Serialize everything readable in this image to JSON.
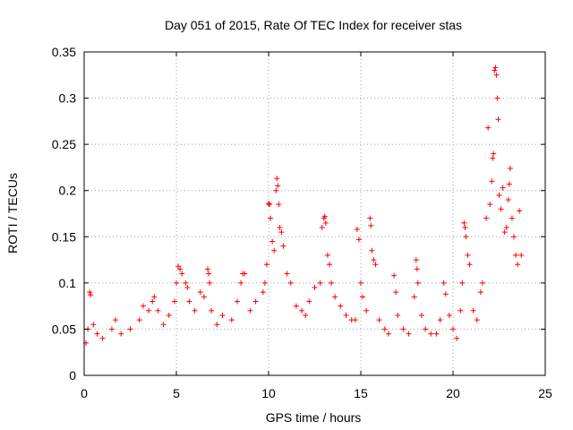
{
  "chart_data": {
    "type": "scatter",
    "title": "Day 051 of 2015, Rate Of TEC Index for receiver stas",
    "xlabel": "GPS time / hours",
    "ylabel": "ROTI / TECUs",
    "xlim": [
      0,
      25
    ],
    "ylim": [
      0,
      0.35
    ],
    "xticks": [
      "0",
      "5",
      "10",
      "15",
      "20",
      "25"
    ],
    "yticks": [
      "0",
      "0.05",
      "0.1",
      "0.15",
      "0.2",
      "0.25",
      "0.3",
      "0.35"
    ],
    "grid": true,
    "marker": "+",
    "color": "#ff0000",
    "series": [
      {
        "name": "",
        "points": [
          [
            0.1,
            0.035
          ],
          [
            0.2,
            0.05
          ],
          [
            0.3,
            0.09
          ],
          [
            0.35,
            0.087
          ],
          [
            0.5,
            0.055
          ],
          [
            0.7,
            0.045
          ],
          [
            1.0,
            0.04
          ],
          [
            1.5,
            0.05
          ],
          [
            1.7,
            0.06
          ],
          [
            2.0,
            0.045
          ],
          [
            2.5,
            0.05
          ],
          [
            3.0,
            0.06
          ],
          [
            3.2,
            0.075
          ],
          [
            3.5,
            0.07
          ],
          [
            3.7,
            0.08
          ],
          [
            3.8,
            0.085
          ],
          [
            4.0,
            0.07
          ],
          [
            4.3,
            0.055
          ],
          [
            4.6,
            0.065
          ],
          [
            4.9,
            0.08
          ],
          [
            5.0,
            0.1
          ],
          [
            5.1,
            0.118
          ],
          [
            5.2,
            0.115
          ],
          [
            5.3,
            0.11
          ],
          [
            5.5,
            0.1
          ],
          [
            5.6,
            0.095
          ],
          [
            5.7,
            0.08
          ],
          [
            6.0,
            0.07
          ],
          [
            6.3,
            0.09
          ],
          [
            6.5,
            0.085
          ],
          [
            6.7,
            0.115
          ],
          [
            6.75,
            0.11
          ],
          [
            6.8,
            0.1
          ],
          [
            6.9,
            0.07
          ],
          [
            7.2,
            0.055
          ],
          [
            7.5,
            0.065
          ],
          [
            8.0,
            0.06
          ],
          [
            8.3,
            0.08
          ],
          [
            8.5,
            0.1
          ],
          [
            8.6,
            0.11
          ],
          [
            8.7,
            0.11
          ],
          [
            9.0,
            0.07
          ],
          [
            9.3,
            0.08
          ],
          [
            9.7,
            0.09
          ],
          [
            9.8,
            0.1
          ],
          [
            9.9,
            0.12
          ],
          [
            10.0,
            0.186
          ],
          [
            10.05,
            0.185
          ],
          [
            10.1,
            0.17
          ],
          [
            10.2,
            0.145
          ],
          [
            10.3,
            0.135
          ],
          [
            10.4,
            0.2
          ],
          [
            10.45,
            0.213
          ],
          [
            10.5,
            0.205
          ],
          [
            10.55,
            0.185
          ],
          [
            10.6,
            0.16
          ],
          [
            10.7,
            0.155
          ],
          [
            10.8,
            0.14
          ],
          [
            11.0,
            0.11
          ],
          [
            11.2,
            0.1
          ],
          [
            11.5,
            0.075
          ],
          [
            11.8,
            0.07
          ],
          [
            12.0,
            0.065
          ],
          [
            12.2,
            0.08
          ],
          [
            12.5,
            0.095
          ],
          [
            12.8,
            0.1
          ],
          [
            12.9,
            0.16
          ],
          [
            13.0,
            0.17
          ],
          [
            13.05,
            0.172
          ],
          [
            13.1,
            0.165
          ],
          [
            13.2,
            0.13
          ],
          [
            13.3,
            0.12
          ],
          [
            13.4,
            0.1
          ],
          [
            13.6,
            0.085
          ],
          [
            13.9,
            0.075
          ],
          [
            14.2,
            0.065
          ],
          [
            14.5,
            0.06
          ],
          [
            14.7,
            0.06
          ],
          [
            14.8,
            0.158
          ],
          [
            14.9,
            0.147
          ],
          [
            15.0,
            0.1
          ],
          [
            15.1,
            0.085
          ],
          [
            15.3,
            0.07
          ],
          [
            15.5,
            0.17
          ],
          [
            15.55,
            0.162
          ],
          [
            15.6,
            0.135
          ],
          [
            15.7,
            0.125
          ],
          [
            15.8,
            0.12
          ],
          [
            16.0,
            0.06
          ],
          [
            16.3,
            0.05
          ],
          [
            16.5,
            0.045
          ],
          [
            16.8,
            0.108
          ],
          [
            16.9,
            0.09
          ],
          [
            17.0,
            0.065
          ],
          [
            17.3,
            0.05
          ],
          [
            17.6,
            0.045
          ],
          [
            17.9,
            0.085
          ],
          [
            18.0,
            0.125
          ],
          [
            18.05,
            0.115
          ],
          [
            18.1,
            0.1
          ],
          [
            18.3,
            0.065
          ],
          [
            18.5,
            0.05
          ],
          [
            18.8,
            0.045
          ],
          [
            19.1,
            0.045
          ],
          [
            19.3,
            0.06
          ],
          [
            19.5,
            0.1
          ],
          [
            19.6,
            0.088
          ],
          [
            19.8,
            0.065
          ],
          [
            20.0,
            0.05
          ],
          [
            20.2,
            0.04
          ],
          [
            20.4,
            0.07
          ],
          [
            20.5,
            0.1
          ],
          [
            20.6,
            0.165
          ],
          [
            20.65,
            0.16
          ],
          [
            20.7,
            0.15
          ],
          [
            20.8,
            0.13
          ],
          [
            20.9,
            0.12
          ],
          [
            21.1,
            0.07
          ],
          [
            21.3,
            0.06
          ],
          [
            21.5,
            0.09
          ],
          [
            21.6,
            0.1
          ],
          [
            21.8,
            0.17
          ],
          [
            21.9,
            0.268
          ],
          [
            22.0,
            0.185
          ],
          [
            22.1,
            0.21
          ],
          [
            22.15,
            0.235
          ],
          [
            22.2,
            0.24
          ],
          [
            22.25,
            0.33
          ],
          [
            22.3,
            0.333
          ],
          [
            22.35,
            0.325
          ],
          [
            22.4,
            0.3
          ],
          [
            22.45,
            0.277
          ],
          [
            22.5,
            0.195
          ],
          [
            22.6,
            0.18
          ],
          [
            22.7,
            0.203
          ],
          [
            22.8,
            0.155
          ],
          [
            22.9,
            0.16
          ],
          [
            23.0,
            0.19
          ],
          [
            23.05,
            0.207
          ],
          [
            23.1,
            0.224
          ],
          [
            23.2,
            0.17
          ],
          [
            23.3,
            0.15
          ],
          [
            23.4,
            0.13
          ],
          [
            23.5,
            0.12
          ],
          [
            23.6,
            0.178
          ],
          [
            23.7,
            0.13
          ]
        ]
      }
    ]
  }
}
